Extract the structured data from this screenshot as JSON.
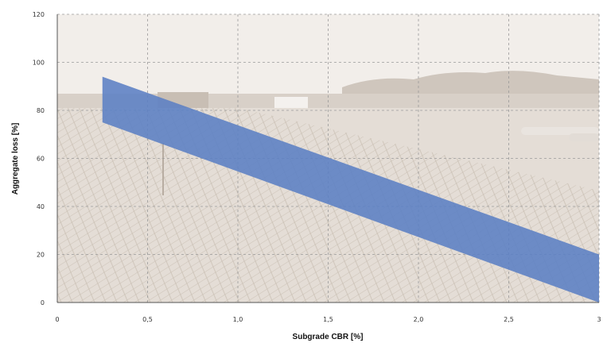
{
  "chart_data": {
    "type": "area",
    "xlabel": "Subgrade CBR [%]",
    "ylabel": "Aggregate loss [%]",
    "xlim": [
      0,
      3
    ],
    "ylim": [
      0,
      120
    ],
    "x_ticks": [
      0,
      0.5,
      1.0,
      1.5,
      2.0,
      2.5,
      3
    ],
    "x_tick_labels": [
      "0",
      "0,5",
      "1,0",
      "1,5",
      "2,0",
      "2,5",
      "3"
    ],
    "y_ticks": [
      0,
      20,
      40,
      60,
      80,
      100,
      120
    ],
    "y_tick_labels": [
      "0",
      "20",
      "40",
      "60",
      "80",
      "100",
      "120"
    ],
    "grid": true,
    "band": {
      "x": [
        0.25,
        3
      ],
      "upper": [
        94,
        20
      ],
      "lower": [
        75,
        0
      ],
      "color": "#5b7fc4"
    },
    "background": "photograph of construction site with geogrid (faded sepia)"
  }
}
